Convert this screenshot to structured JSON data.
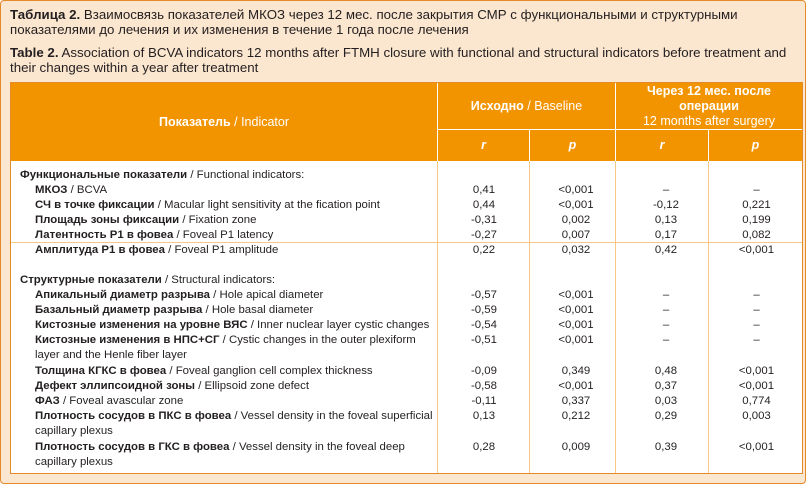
{
  "caption": {
    "ru_label": "Таблица 2.",
    "ru_text": " Взаимосвязь показателей МКОЗ через 12 мес. после закрытия СМР с функциональными и структурными показателями до лечения и их изменения в течение 1 года после лечения",
    "en_label": "Table 2.",
    "en_text": " Association of BCVA indicators 12 months after FTMH closure with functional and structural indicators before treatment and their changes within a year after treatment"
  },
  "header": {
    "indicator_ru": "Показатель",
    "indicator_en": " / Indicator",
    "baseline_ru": "Исходно",
    "baseline_en": " / Baseline",
    "after_ru": "Через 12 мес. после операции",
    "after_en": "12 months after surgery",
    "r": "r",
    "p": "p"
  },
  "sections": [
    {
      "title_ru": "Функциональные показатели",
      "title_en": " / Functional indicators:",
      "rows": [
        {
          "ru": "МКОЗ",
          "en": " / BCVA",
          "r1": "0,41",
          "p1": "<0,001",
          "r2": "–",
          "p2": "–"
        },
        {
          "ru": "СЧ в точке фиксации",
          "en": " / Macular light sensitivity at the fication point",
          "r1": "0,44",
          "p1": "<0,001",
          "r2": "-0,12",
          "p2": "0,221"
        },
        {
          "ru": "Площадь зоны фиксации",
          "en": " / Fixation zone",
          "r1": "-0,31",
          "p1": "0,002",
          "r2": "0,13",
          "p2": "0,199"
        },
        {
          "ru": "Латентность P1 в фовеа",
          "en": " / Foveal P1 latency",
          "r1": "-0,27",
          "p1": "0,007",
          "r2": "0,17",
          "p2": "0,082"
        },
        {
          "ru": "Амплитуда P1 в фовеа",
          "en": " / Foveal P1 amplitude",
          "r1": "0,22",
          "p1": "0,032",
          "r2": "0,42",
          "p2": "<0,001"
        }
      ]
    },
    {
      "title_ru": "Структурные показатели",
      "title_en": " / Structural indicators:",
      "rows": [
        {
          "ru": "Апикальный диаметр разрыва",
          "en": " / Hole apical diameter",
          "r1": "-0,57",
          "p1": "<0,001",
          "r2": "–",
          "p2": "–"
        },
        {
          "ru": "Базальный диаметр разрыва",
          "en": " / Hole basal diameter",
          "r1": "-0,59",
          "p1": "<0,001",
          "r2": "–",
          "p2": "–"
        },
        {
          "ru": "Кистозные изменения на уровне ВЯС",
          "en": " / Inner nuclear layer cystic changes",
          "r1": "-0,54",
          "p1": "<0,001",
          "r2": "–",
          "p2": "–"
        },
        {
          "ru": "Кистозные изменения в НПС+СГ",
          "en": " / Cystic changes in the outer plexiform layer and the Henle fiber layer",
          "r1": "-0,51",
          "p1": "<0,001",
          "r2": "–",
          "p2": "–"
        },
        {
          "ru": "Толщина КГКС в фовеа",
          "en": " / Foveal ganglion cell complex thickness",
          "r1": "-0,09",
          "p1": "0,349",
          "r2": "0,48",
          "p2": "<0,001"
        },
        {
          "ru": "Дефект эллипсоидной зоны",
          "en": " / Ellipsoid zone defect",
          "r1": "-0,58",
          "p1": "<0,001",
          "r2": "0,37",
          "p2": "<0,001"
        },
        {
          "ru": "ФАЗ",
          "en": " / Foveal avascular zone",
          "r1": "-0,11",
          "p1": "0,337",
          "r2": "0,03",
          "p2": "0,774"
        },
        {
          "ru": "Плотность сосудов в ПКС в фовеа",
          "en": " / Vessel density in the foveal superficial capillary plexus",
          "r1": "0,13",
          "p1": "0,212",
          "r2": "0,29",
          "p2": "0,003"
        },
        {
          "ru": "Плотность сосудов в ГКС в фовеа",
          "en": " / Vessel density in the foveal deep capillary plexus",
          "r1": "0,28",
          "p1": "0,009",
          "r2": "0,39",
          "p2": "<0,001"
        }
      ]
    }
  ]
}
